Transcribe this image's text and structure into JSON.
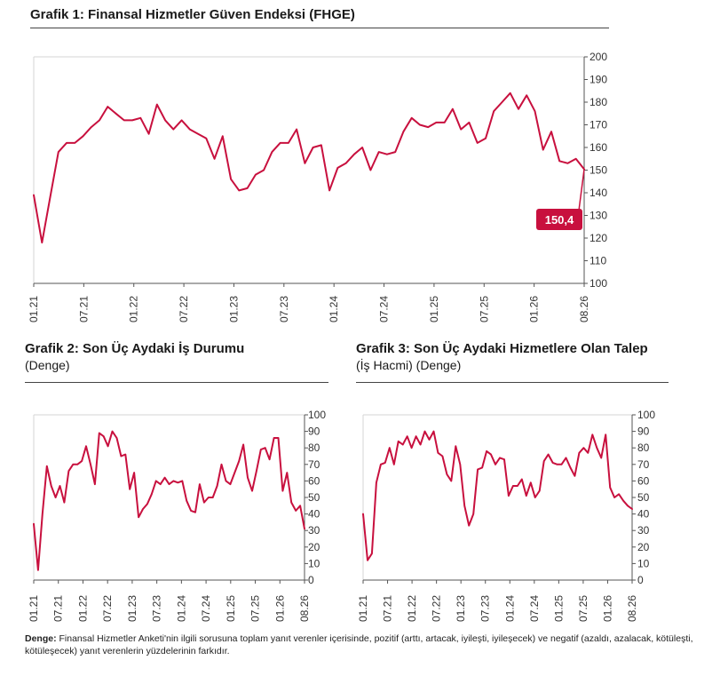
{
  "colors": {
    "line": "#c8103e",
    "grid": "#d6d6d6",
    "axis": "#555555"
  },
  "charts": {
    "c1": {
      "title": "Grafik 1: Finansal Hizmetler Güven Endeksi (FHGE)"
    },
    "c2": {
      "title": "Grafik 2: Son Üç Aydaki İş Durumu",
      "subtitle": "(Denge)"
    },
    "c3": {
      "title": "Grafik 3: Son Üç Aydaki Hizmetlere Olan Talep",
      "subtitle": "(İş Hacmi) (Denge)"
    }
  },
  "note": {
    "label": "Denge:",
    "text": " Finansal Hizmetler Anketi'nin ilgili sorusuna toplam yanıt verenler içerisinde, pozitif (arttı, artacak, iyileşti, iyileşecek) ve negatif (azaldı, azalacak, kötüleşti, kötüleşecek) yanıt verenlerin yüzdelerinin farkıdır."
  },
  "chart_data": [
    {
      "type": "line",
      "title": "Grafik 1: Finansal Hizmetler Güven Endeksi (FHGE)",
      "x_tick_labels": [
        "01.21",
        "07.21",
        "01.22",
        "07.22",
        "01.23",
        "07.23",
        "01.24",
        "07.24",
        "01.25",
        "07.25",
        "01.26",
        "08.26"
      ],
      "ylim": [
        100,
        200
      ],
      "y_ticks": [
        100,
        110,
        120,
        130,
        140,
        150,
        160,
        170,
        180,
        190,
        200
      ],
      "annotation": "150,4",
      "series": [
        {
          "values": [
            139,
            118,
            138,
            158,
            162,
            162,
            165,
            169,
            172,
            178,
            175,
            172,
            172,
            173,
            166,
            179,
            172,
            168,
            172,
            168,
            166,
            164,
            155,
            165,
            146,
            141,
            142,
            148,
            150,
            158,
            162,
            162,
            168,
            153,
            160,
            161,
            141,
            151,
            153,
            157,
            160,
            150,
            158,
            157,
            158,
            167,
            173,
            170,
            169,
            171,
            171,
            177,
            168,
            171,
            162,
            164,
            176,
            180,
            184,
            177,
            183,
            176,
            159,
            167,
            154,
            153,
            155,
            150.4
          ]
        }
      ],
      "grid": false
    },
    {
      "type": "line",
      "title": "Grafik 2: Son Üç Aydaki İş Durumu",
      "subtitle": "(Denge)",
      "x_tick_labels": [
        "01.21",
        "07.21",
        "01.22",
        "07.22",
        "01.23",
        "07.23",
        "01.24",
        "07.24",
        "01.25",
        "07.25",
        "01.26",
        "08.26"
      ],
      "ylim": [
        0,
        100
      ],
      "y_ticks": [
        0,
        10,
        20,
        30,
        40,
        50,
        60,
        70,
        80,
        90,
        100
      ],
      "series": [
        {
          "values": [
            34,
            6,
            40,
            69,
            57,
            50,
            57,
            47,
            66,
            70,
            70,
            72,
            81,
            70,
            58,
            89,
            87,
            81,
            90,
            86,
            75,
            76,
            55,
            65,
            38,
            43,
            46,
            52,
            60,
            58,
            62,
            58,
            60,
            59,
            60,
            48,
            42,
            41,
            58,
            47,
            50,
            50,
            57,
            70,
            60,
            58,
            65,
            72,
            82,
            62,
            54,
            66,
            79,
            80,
            73,
            86,
            86,
            54,
            65,
            47,
            42,
            45,
            31
          ]
        }
      ],
      "grid": false
    },
    {
      "type": "line",
      "title": "Grafik 3: Son Üç Aydaki Hizmetlere Olan Talep",
      "subtitle": "(İş Hacmi) (Denge)",
      "x_tick_labels": [
        "01.21",
        "07.21",
        "01.22",
        "07.22",
        "01.23",
        "07.23",
        "01.24",
        "07.24",
        "01.25",
        "07.25",
        "01.26",
        "08.26"
      ],
      "ylim": [
        0,
        100
      ],
      "y_ticks": [
        0,
        10,
        20,
        30,
        40,
        50,
        60,
        70,
        80,
        90,
        100
      ],
      "series": [
        {
          "values": [
            40,
            12,
            16,
            59,
            70,
            71,
            80,
            70,
            84,
            82,
            87,
            80,
            87,
            82,
            90,
            85,
            90,
            77,
            75,
            64,
            60,
            81,
            70,
            45,
            33,
            40,
            67,
            68,
            78,
            76,
            70,
            74,
            73,
            51,
            57,
            57,
            61,
            51,
            59,
            50,
            54,
            72,
            76,
            71,
            70,
            70,
            74,
            68,
            63,
            77,
            80,
            77,
            88,
            80,
            74,
            88,
            56,
            50,
            52,
            48,
            45,
            43
          ]
        }
      ],
      "grid": false
    }
  ]
}
